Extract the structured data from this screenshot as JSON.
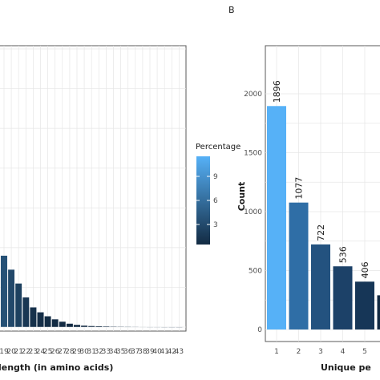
{
  "panels": {
    "right_letter": "B"
  },
  "chart_data": [
    {
      "type": "bar",
      "xlabel": "length (in amino acids)",
      "ylabel": "",
      "categories": [
        "19",
        "20",
        "21",
        "22",
        "23",
        "24",
        "25",
        "26",
        "27",
        "28",
        "29",
        "30",
        "31",
        "32",
        "33",
        "34",
        "35",
        "36",
        "37",
        "38",
        "39",
        "40",
        "41",
        "42",
        "43"
      ],
      "tick_labels": [
        "19",
        "20",
        "21",
        "22",
        "23",
        "24",
        "25",
        "26",
        "27",
        "28",
        "29",
        "30",
        "31",
        "32",
        "33",
        "34",
        "35",
        "36",
        "37",
        "38",
        "39",
        "40",
        "41",
        "42",
        "43"
      ],
      "visible_tick_labels": [
        "19",
        "20",
        "21",
        "22",
        "23",
        "24",
        "25",
        "26",
        "27",
        "28",
        "29",
        "30",
        "31",
        "32",
        "33",
        "34",
        "35",
        "36",
        "37",
        "38",
        "39",
        "40",
        "41",
        "42",
        "43"
      ],
      "values": [
        3.6,
        2.9,
        2.2,
        1.5,
        1.0,
        0.75,
        0.55,
        0.4,
        0.28,
        0.18,
        0.12,
        0.08,
        0.06,
        0.05,
        0.04,
        0.03,
        0.025,
        0.02,
        0.015,
        0.012,
        0.01,
        0.01,
        0.008,
        0.006,
        0.005
      ],
      "ylim": [
        0,
        14
      ],
      "grid": true,
      "legend": {
        "title": "Percentage",
        "ticks": [
          "3",
          "6",
          "9"
        ],
        "range": [
          0.5,
          11.5
        ],
        "low_color": "#132b43",
        "high_color": "#56b1f7",
        "placement": "right"
      }
    },
    {
      "type": "bar",
      "xlabel": "Unique pe",
      "ylabel": "Count",
      "categories": [
        "1",
        "2",
        "3",
        "4",
        "5"
      ],
      "values": [
        1896,
        1077,
        722,
        536,
        406
      ],
      "data_labels": [
        "1896",
        "1077",
        "722",
        "536",
        "406"
      ],
      "extra_bar_value": 290,
      "yticks": [
        "0",
        "500",
        "1000",
        "1500",
        "2000"
      ],
      "ylim": [
        0,
        2100
      ],
      "colors": [
        "#56b1f7",
        "#2f6ea6",
        "#23527f",
        "#1c4168",
        "#163657",
        "#132b43"
      ],
      "grid": true
    }
  ]
}
